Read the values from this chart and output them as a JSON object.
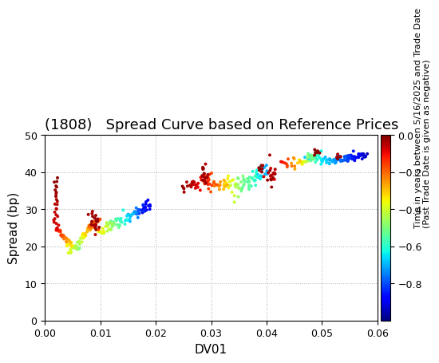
{
  "title": "(1808)   Spread Curve based on Reference Prices",
  "xlabel": "DV01",
  "ylabel": "Spread (bp)",
  "xlim": [
    0.0,
    0.06
  ],
  "ylim": [
    0.0,
    50.0
  ],
  "xticks": [
    0.0,
    0.01,
    0.02,
    0.03,
    0.04,
    0.05,
    0.06
  ],
  "yticks": [
    0,
    10,
    20,
    30,
    40,
    50
  ],
  "colorbar_label_line1": "Time in years between 5/16/2025 and Trade Date",
  "colorbar_label_line2": "(Past Trade Date is given as negative)",
  "cmap": "jet",
  "vmin": -1.0,
  "vmax": 0.0,
  "colorbar_ticks": [
    0.0,
    -0.2,
    -0.4,
    -0.6,
    -0.8
  ],
  "background_color": "#ffffff",
  "grid_color": "#b0b0b0",
  "title_fontsize": 13,
  "axis_fontsize": 11,
  "point_size": 8
}
